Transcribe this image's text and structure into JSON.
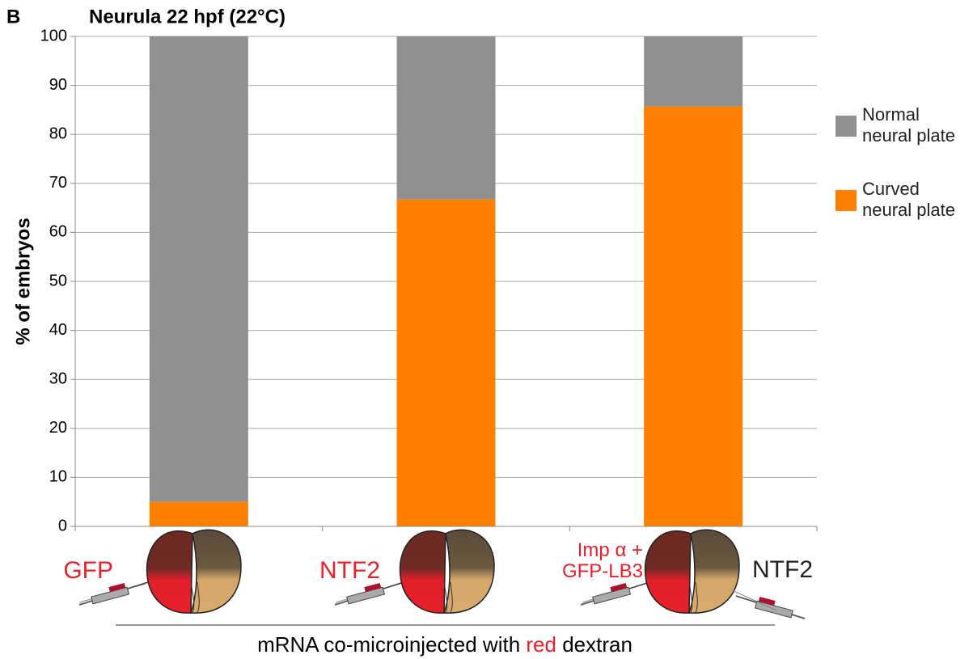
{
  "panel_label": "B",
  "chart_data": {
    "type": "stacked_bar",
    "title": "Neurula 22 hpf (22°C)",
    "ylabel": "% of embryos",
    "categories": [
      "GFP",
      "NTF2",
      "Imp α + GFP-LB3"
    ],
    "co_injected_label": "NTF2",
    "xlabel_parts": [
      "mRNA co-microinjected with",
      "red",
      "dextran"
    ],
    "series": [
      {
        "name": "Curved neural plate",
        "color": "#ff8000",
        "values": [
          5,
          66.7,
          85.7
        ]
      },
      {
        "name": "Normal neural plate",
        "color": "#909090",
        "values": [
          95,
          33.3,
          14.3
        ]
      }
    ],
    "ylim": [
      0,
      100
    ],
    "yticks": [
      0,
      10,
      20,
      30,
      40,
      50,
      60,
      70,
      80,
      90,
      100
    ],
    "grid": true
  }
}
